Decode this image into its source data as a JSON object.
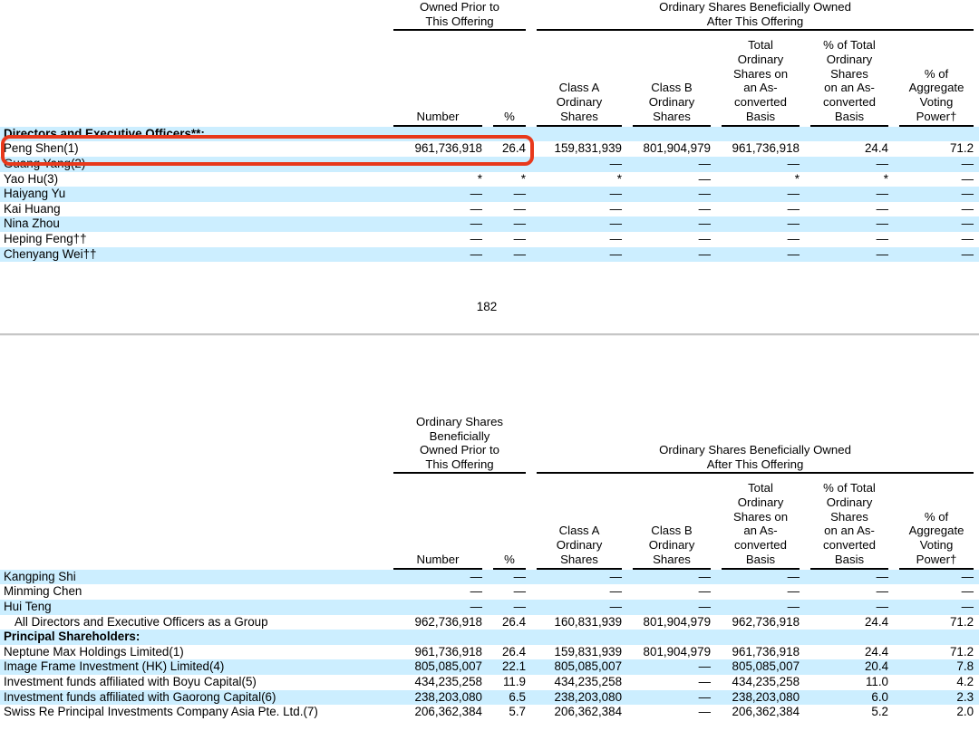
{
  "page": {
    "page_number": "182",
    "colors": {
      "row_highlight": "#cceeff",
      "annotation_red": "#e8391c",
      "divider_gray": "#c6c6c6",
      "header_rule": "#000000"
    }
  },
  "annotation": {
    "shape": "red-rounded-rectangle",
    "highlights": "Peng Shen(1) row — Number and % owned prior to this offering"
  },
  "table1": {
    "group_headers": {
      "prior": "Owned Prior to\nThis Offering",
      "after": "Ordinary Shares Beneficially Owned\nAfter This Offering"
    },
    "columns": [
      "Number",
      "%",
      "Class A\nOrdinary\nShares",
      "Class B\nOrdinary\nShares",
      "Total\nOrdinary\nShares on\nan As-\nconverted\nBasis",
      "% of Total\nOrdinary\nShares\non an As-\nconverted\nBasis",
      "% of\nAggregate\nVoting\nPower†"
    ],
    "rows": [
      {
        "label": "Directors and Executive Officers**:",
        "bold": true,
        "values": [
          "",
          "",
          "",
          "",
          "",
          "",
          ""
        ]
      },
      {
        "label": "Peng Shen(1)",
        "values": [
          "961,736,918",
          "26.4",
          "159,831,939",
          "801,904,979",
          "961,736,918",
          "24.4",
          "71.2"
        ]
      },
      {
        "label": "Guang Yang(2)",
        "values": [
          "—",
          "—",
          "—",
          "—",
          "—",
          "—",
          "—"
        ]
      },
      {
        "label": "Yao Hu(3)",
        "values": [
          "*",
          "*",
          "*",
          "—",
          "*",
          "*",
          "—"
        ]
      },
      {
        "label": "Haiyang Yu",
        "values": [
          "—",
          "—",
          "—",
          "—",
          "—",
          "—",
          "—"
        ]
      },
      {
        "label": "Kai Huang",
        "values": [
          "—",
          "—",
          "—",
          "—",
          "—",
          "—",
          "—"
        ]
      },
      {
        "label": "Nina Zhou",
        "values": [
          "—",
          "—",
          "—",
          "—",
          "—",
          "—",
          "—"
        ]
      },
      {
        "label": "Heping Feng††",
        "values": [
          "—",
          "—",
          "—",
          "—",
          "—",
          "—",
          "—"
        ]
      },
      {
        "label": "Chenyang Wei††",
        "values": [
          "—",
          "—",
          "—",
          "—",
          "—",
          "—",
          "—"
        ]
      }
    ]
  },
  "table2": {
    "group_headers": {
      "prior": "Ordinary Shares\nBeneficially\nOwned Prior to\nThis Offering",
      "after": "Ordinary Shares Beneficially Owned\nAfter This Offering"
    },
    "columns": [
      "Number",
      "%",
      "Class A\nOrdinary\nShares",
      "Class B\nOrdinary\nShares",
      "Total\nOrdinary\nShares on\nan As-\nconverted\nBasis",
      "% of Total\nOrdinary\nShares\non an As-\nconverted\nBasis",
      "% of\nAggregate\nVoting\nPower†"
    ],
    "rows": [
      {
        "label": "Kangping Shi",
        "values": [
          "—",
          "—",
          "—",
          "—",
          "—",
          "—",
          "—"
        ]
      },
      {
        "label": "Minming Chen",
        "values": [
          "—",
          "—",
          "—",
          "—",
          "—",
          "—",
          "—"
        ]
      },
      {
        "label": "Hui Teng",
        "values": [
          "—",
          "—",
          "—",
          "—",
          "—",
          "—",
          "—"
        ]
      },
      {
        "label": "All Directors and Executive Officers as a Group",
        "indent": true,
        "values": [
          "962,736,918",
          "26.4",
          "160,831,939",
          "801,904,979",
          "962,736,918",
          "24.4",
          "71.2"
        ]
      },
      {
        "label": "Principal Shareholders:",
        "bold": true,
        "values": [
          "",
          "",
          "",
          "",
          "",
          "",
          ""
        ]
      },
      {
        "label": "Neptune Max Holdings Limited(1)",
        "values": [
          "961,736,918",
          "26.4",
          "159,831,939",
          "801,904,979",
          "961,736,918",
          "24.4",
          "71.2"
        ]
      },
      {
        "label": "Image Frame Investment (HK) Limited(4)",
        "values": [
          "805,085,007",
          "22.1",
          "805,085,007",
          "—",
          "805,085,007",
          "20.4",
          "7.8"
        ]
      },
      {
        "label": "Investment funds affiliated with Boyu Capital(5)",
        "values": [
          "434,235,258",
          "11.9",
          "434,235,258",
          "—",
          "434,235,258",
          "11.0",
          "4.2"
        ]
      },
      {
        "label": "Investment funds affiliated with Gaorong Capital(6)",
        "values": [
          "238,203,080",
          "6.5",
          "238,203,080",
          "—",
          "238,203,080",
          "6.0",
          "2.3"
        ]
      },
      {
        "label": "Swiss Re Principal Investments Company Asia Pte. Ltd.(7)",
        "values": [
          "206,362,384",
          "5.7",
          "206,362,384",
          "—",
          "206,362,384",
          "5.2",
          "2.0"
        ]
      }
    ]
  }
}
